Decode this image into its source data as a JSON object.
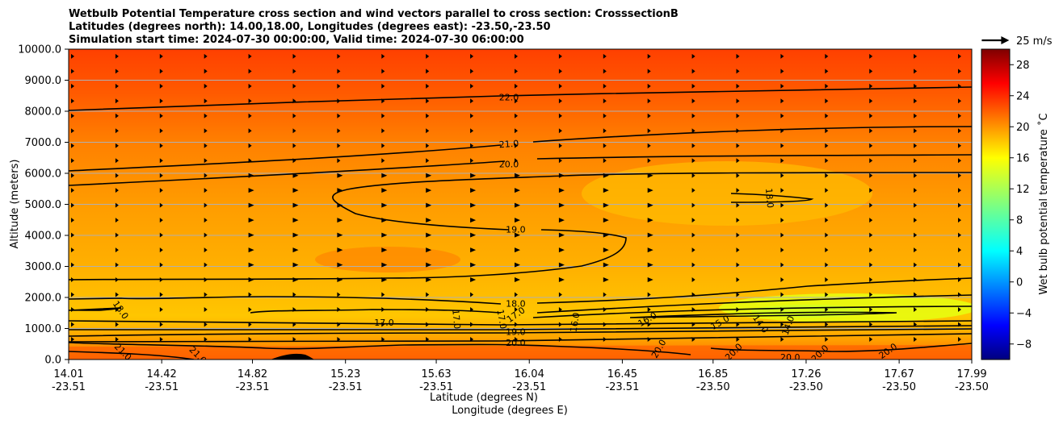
{
  "chart_data": {
    "type": "heatmap",
    "title_lines": [
      "Wetbulb Potential Temperature cross section and wind vectors parallel to cross section: CrosssectionB",
      "Latitudes (degrees north): 14.00,18.00, Longitudes (degrees east): -23.50,-23.50",
      "Simulation start time: 2024-07-30 00:00:00, Valid time: 2024-07-30 06:00:00"
    ],
    "xlabel_lat": "Latitude (degrees N)",
    "xlabel_lon": "Longitude (degrees E)",
    "ylabel": "Altitude (meters)",
    "colorbar_label": "Wet bulb potential temperature ˚C",
    "x_ticks": [
      {
        "lat": "14.01",
        "lon": "-23.51"
      },
      {
        "lat": "14.42",
        "lon": "-23.51"
      },
      {
        "lat": "14.82",
        "lon": "-23.51"
      },
      {
        "lat": "15.23",
        "lon": "-23.51"
      },
      {
        "lat": "15.63",
        "lon": "-23.51"
      },
      {
        "lat": "16.04",
        "lon": "-23.51"
      },
      {
        "lat": "16.45",
        "lon": "-23.51"
      },
      {
        "lat": "16.85",
        "lon": "-23.50"
      },
      {
        "lat": "17.26",
        "lon": "-23.50"
      },
      {
        "lat": "17.67",
        "lon": "-23.50"
      },
      {
        "lat": "17.99",
        "lon": "-23.50"
      }
    ],
    "x_range": [
      14.01,
      17.99
    ],
    "y_ticks": [
      "0.0",
      "1000.0",
      "2000.0",
      "3000.0",
      "4000.0",
      "5000.0",
      "6000.0",
      "7000.0",
      "8000.0",
      "9000.0",
      "10000.0"
    ],
    "ylim": [
      0,
      10000
    ],
    "colorbar_ticks": [
      "28",
      "24",
      "20",
      "16",
      "12",
      "8",
      "4",
      "0",
      "−4",
      "−8"
    ],
    "colorbar_range": [
      -10,
      30
    ],
    "colormap": "jet",
    "wind_key_label": "25 m/s",
    "contours": [
      {
        "level": "22.0"
      },
      {
        "level": "21.0"
      },
      {
        "level": "20.0"
      },
      {
        "level": "19.0"
      },
      {
        "level": "18.0"
      },
      {
        "level": "17.0"
      },
      {
        "level": "16.0"
      },
      {
        "level": "15.0"
      },
      {
        "level": "14.0"
      }
    ],
    "contour_labels": [
      {
        "text": "22.0",
        "lat": 15.95,
        "alt": 8450,
        "rot": 0
      },
      {
        "text": "21.0",
        "lat": 15.95,
        "alt": 6950,
        "rot": -4
      },
      {
        "text": "20.0",
        "lat": 15.95,
        "alt": 6300,
        "rot": 0
      },
      {
        "text": "19.0",
        "lat": 15.98,
        "alt": 4200,
        "rot": 0
      },
      {
        "text": "18.0",
        "lat": 17.1,
        "alt": 5200,
        "rot": 85
      },
      {
        "text": "18.0",
        "lat": 14.24,
        "alt": 1600,
        "rot": 55
      },
      {
        "text": "17.0",
        "lat": 15.4,
        "alt": 1200,
        "rot": 0
      },
      {
        "text": "17.0",
        "lat": 15.72,
        "alt": 1300,
        "rot": 85
      },
      {
        "text": "17.0",
        "lat": 15.92,
        "alt": 1300,
        "rot": 80
      },
      {
        "text": "18.0",
        "lat": 15.98,
        "alt": 1800,
        "rot": 0
      },
      {
        "text": "17.0",
        "lat": 15.98,
        "alt": 1450,
        "rot": -35
      },
      {
        "text": "19.0",
        "lat": 15.98,
        "alt": 900,
        "rot": 0
      },
      {
        "text": "20.0",
        "lat": 15.98,
        "alt": 550,
        "rot": 0
      },
      {
        "text": "16.0",
        "lat": 16.24,
        "alt": 1200,
        "rot": -80
      },
      {
        "text": "16.0",
        "lat": 16.56,
        "alt": 1300,
        "rot": -30
      },
      {
        "text": "15.0",
        "lat": 16.88,
        "alt": 1200,
        "rot": -30
      },
      {
        "text": "14.0",
        "lat": 17.06,
        "alt": 1150,
        "rot": 55
      },
      {
        "text": "14.0",
        "lat": 17.18,
        "alt": 1100,
        "rot": -70
      },
      {
        "text": "21.0",
        "lat": 14.25,
        "alt": 250,
        "rot": 45
      },
      {
        "text": "21.0",
        "lat": 14.58,
        "alt": 150,
        "rot": 45
      },
      {
        "text": "20.0",
        "lat": 16.61,
        "alt": 350,
        "rot": -60
      },
      {
        "text": "20.0",
        "lat": 16.94,
        "alt": 250,
        "rot": -45
      },
      {
        "text": "20.0",
        "lat": 17.19,
        "alt": 80,
        "rot": 0
      },
      {
        "text": "20.0",
        "lat": 17.32,
        "alt": 200,
        "rot": -45
      },
      {
        "text": "20.0",
        "lat": 17.62,
        "alt": 280,
        "rot": -35
      }
    ]
  }
}
